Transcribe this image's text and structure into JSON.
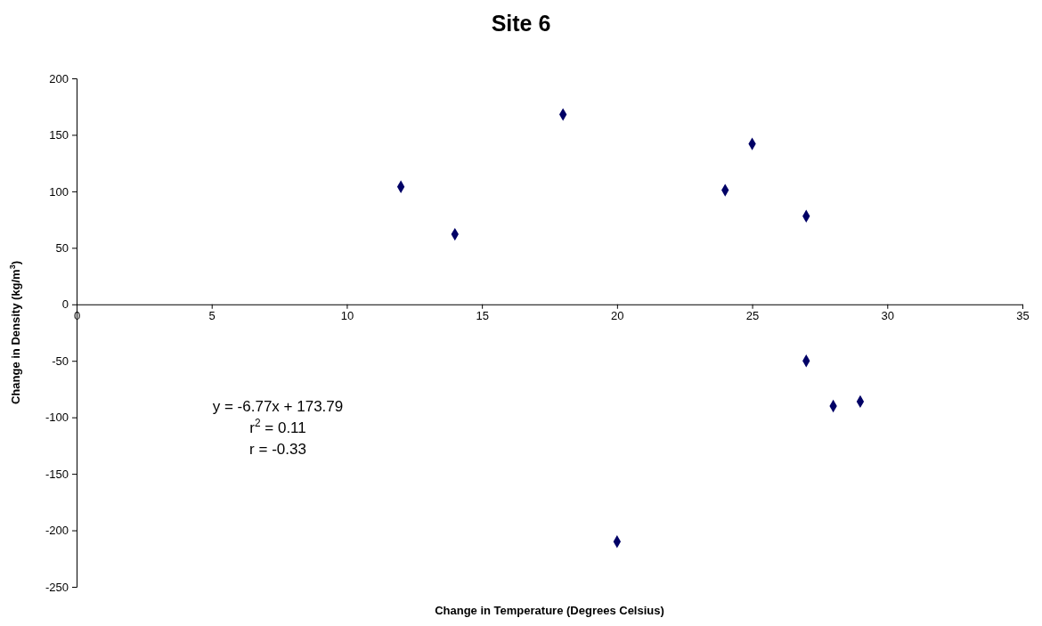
{
  "chart_data": {
    "type": "scatter",
    "title": "Site 6",
    "xlabel": "Change in Temperature (Degrees Celsius)",
    "ylabel": "Change in Density (kg/m$^{3}$)",
    "x": [
      12,
      14,
      18,
      20,
      24,
      25,
      27,
      27,
      28,
      29
    ],
    "series": [
      {
        "color": "#000066",
        "values": [
          104,
          62,
          168,
          -210,
          101,
          142,
          78,
          -50,
          -90,
          -86
        ]
      }
    ],
    "xlim": [
      0,
      35
    ],
    "xticks": [
      0,
      5,
      10,
      15,
      20,
      25,
      30,
      35
    ],
    "ylim": [
      -250,
      200
    ],
    "yticks": [
      -250,
      -200,
      -150,
      -100,
      -50,
      0,
      50,
      100,
      150,
      200
    ],
    "marker": "diamond",
    "grid": false,
    "annotations": [
      "y = -6.77x + 173.79",
      "r$^{2}$ = 0.11",
      "r = -0.33"
    ]
  }
}
